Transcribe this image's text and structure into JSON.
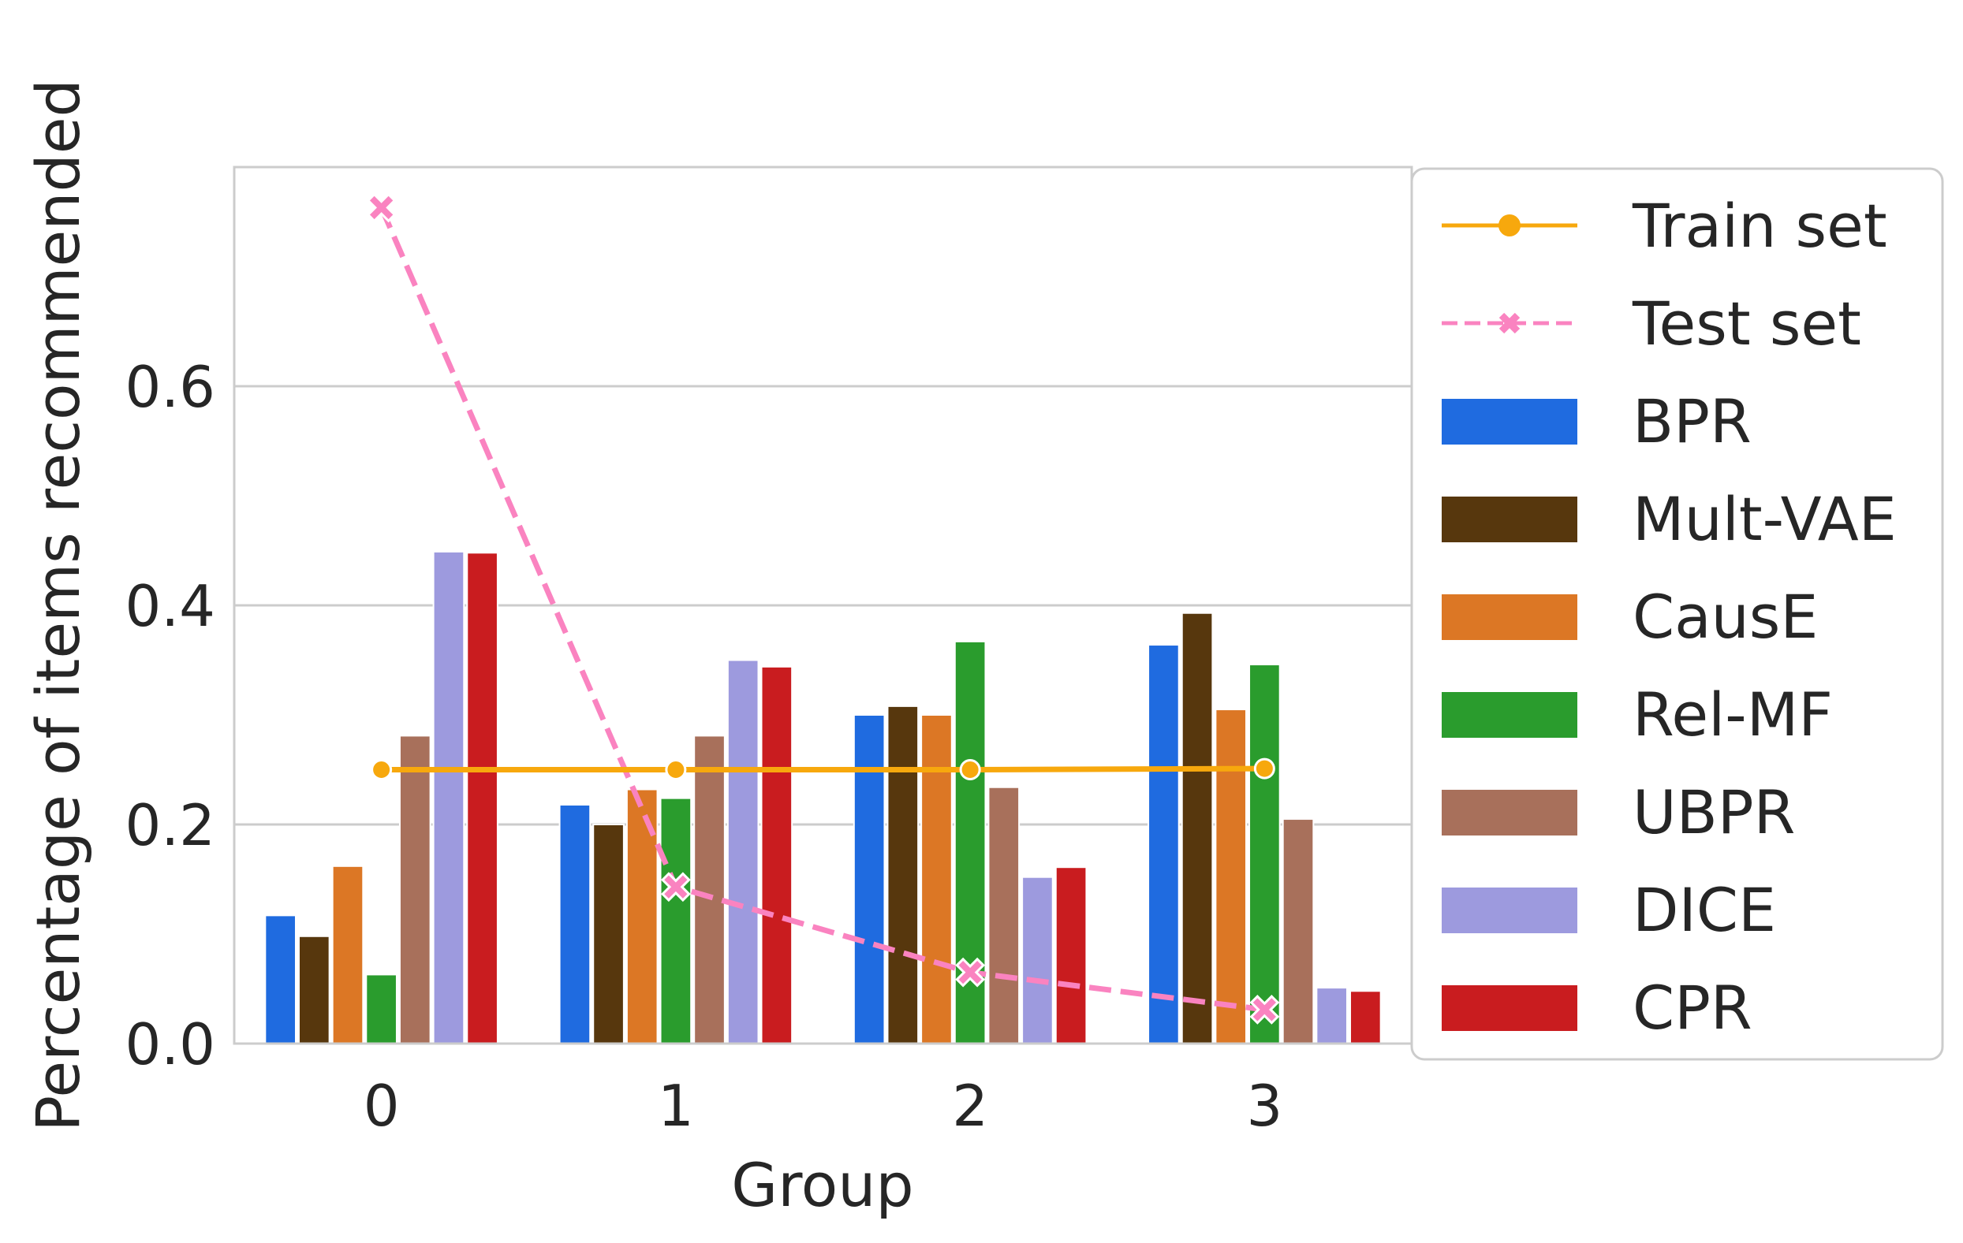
{
  "chart_data": {
    "type": "bar",
    "title": "",
    "xlabel": "Group",
    "ylabel": "Percentage of items recommended",
    "categories": [
      "0",
      "1",
      "2",
      "3"
    ],
    "ylim": [
      0,
      0.8
    ],
    "yticks": [
      0.0,
      0.2,
      0.4,
      0.6
    ],
    "ytick_labels": [
      "0.0",
      "0.2",
      "0.4",
      "0.6"
    ],
    "grid": true,
    "legend_position": "outside right",
    "series": [
      {
        "name": "BPR",
        "color": "#1f6be0",
        "values": [
          0.117,
          0.218,
          0.3,
          0.364
        ]
      },
      {
        "name": "Mult-VAE",
        "color": "#57370d",
        "values": [
          0.098,
          0.2,
          0.308,
          0.393
        ]
      },
      {
        "name": "CausE",
        "color": "#dc7725",
        "values": [
          0.162,
          0.232,
          0.3,
          0.305
        ]
      },
      {
        "name": "Rel-MF",
        "color": "#2a9c2d",
        "values": [
          0.063,
          0.224,
          0.367,
          0.346
        ]
      },
      {
        "name": "UBPR",
        "color": "#a8705b",
        "values": [
          0.281,
          0.281,
          0.234,
          0.205
        ]
      },
      {
        "name": "DICE",
        "color": "#9d9ade",
        "values": [
          0.449,
          0.35,
          0.152,
          0.051
        ]
      },
      {
        "name": "CPR",
        "color": "#c91c1f",
        "values": [
          0.448,
          0.344,
          0.161,
          0.048
        ]
      }
    ],
    "lines": [
      {
        "name": "Train set",
        "color": "#f7a80d",
        "style": "solid",
        "marker": "circle",
        "values": [
          0.25,
          0.25,
          0.25,
          0.251
        ]
      },
      {
        "name": "Test set",
        "color": "#fa83c0",
        "style": "dashed",
        "marker": "x",
        "values": [
          0.763,
          0.143,
          0.065,
          0.031
        ]
      }
    ]
  }
}
